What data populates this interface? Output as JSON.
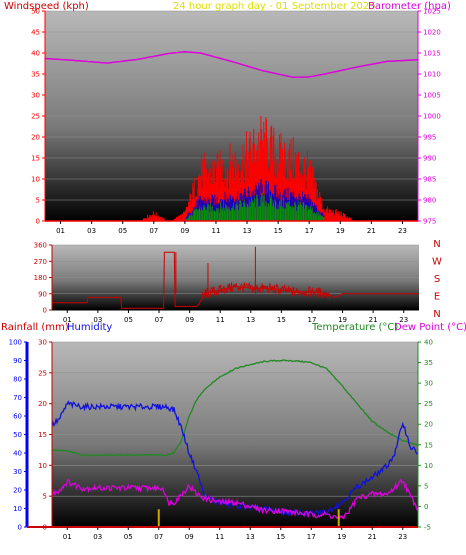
{
  "header": {
    "wind_label": "Windspeed (kph)",
    "date_label": "24 hour graph day - 01 September 2025",
    "baro_label": "Barometer (hpa)",
    "rain_label": "Rainfall (mm)",
    "humidity_label": "Humidity",
    "temp_label": "Temperature (°C)",
    "dew_label": "Dew Point (°C)"
  },
  "colors": {
    "wind": "#ff0000",
    "gust_blue": "#0000cc",
    "gust_green": "#009900",
    "baro": "#dd00dd",
    "temp": "#228822",
    "humidity": "#1111dd",
    "dewpoint": "#dd00dd",
    "rain_axis": "#0000ff",
    "rain_bar": "#ccaa00",
    "title_red": "#cc0000",
    "title_yellow": "#dddd00",
    "direction": "#cc0000"
  },
  "chart_data": [
    {
      "type": "area",
      "id": "wind_baro",
      "x_tick_labels": [
        "01",
        "03",
        "05",
        "07",
        "09",
        "11",
        "13",
        "15",
        "17",
        "19",
        "21",
        "23"
      ],
      "left_axis": {
        "label": "Windspeed (kph)",
        "ylim": [
          0,
          50
        ],
        "ticks": [
          0,
          5,
          10,
          15,
          20,
          25,
          30,
          35,
          40,
          45,
          50
        ]
      },
      "right_axis": {
        "label": "Barometer (hpa)",
        "ylim": [
          975,
          1025
        ],
        "ticks": [
          975,
          980,
          985,
          990,
          995,
          1000,
          1005,
          1010,
          1015,
          1020,
          1025
        ]
      },
      "series": [
        {
          "name": "Windspeed (kph)",
          "type": "bar",
          "x": [
            0,
            1,
            2,
            3,
            4,
            5,
            6,
            7,
            8,
            9,
            10,
            11,
            12,
            13,
            14,
            15,
            16,
            17,
            18,
            19,
            20,
            21,
            22,
            23,
            24
          ],
          "values": [
            0,
            0,
            0,
            0,
            0,
            0,
            0,
            2,
            0,
            2,
            13,
            13,
            15,
            17,
            21,
            17,
            16,
            13,
            3,
            2,
            0,
            0,
            0,
            0,
            0
          ]
        },
        {
          "name": "Barometer (hpa)",
          "type": "line",
          "x": [
            0,
            2,
            4,
            6,
            8,
            9,
            10,
            12,
            14,
            16,
            17,
            18,
            20,
            22,
            24
          ],
          "values": [
            1013.7,
            1013.2,
            1012.6,
            1013.5,
            1014.9,
            1015.3,
            1015.0,
            1013.0,
            1010.8,
            1009.2,
            1009.3,
            1010.0,
            1011.6,
            1013.0,
            1013.4
          ]
        }
      ]
    },
    {
      "type": "line",
      "id": "direction",
      "x_tick_labels": [
        "01",
        "03",
        "05",
        "07",
        "09",
        "11",
        "13",
        "15",
        "17",
        "19",
        "21",
        "23"
      ],
      "left_axis": {
        "ylim": [
          0,
          360
        ],
        "ticks": [
          0,
          90,
          180,
          270,
          360
        ]
      },
      "right_labels": [
        "N",
        "W",
        "S",
        "E",
        "N"
      ],
      "series": [
        {
          "name": "",
          "x": [
            0,
            2.3,
            2.35,
            4.5,
            4.55,
            7.3,
            7.35,
            8.0,
            8.05,
            9.5,
            10,
            11,
            12,
            13,
            14,
            15,
            16,
            17,
            18,
            18.5,
            19,
            20,
            21,
            22,
            23,
            24
          ],
          "values": [
            40,
            40,
            70,
            70,
            10,
            10,
            320,
            320,
            20,
            20,
            90,
            110,
            130,
            120,
            120,
            110,
            100,
            100,
            90,
            70,
            90,
            90,
            90,
            90,
            90,
            90
          ]
        }
      ]
    },
    {
      "type": "line",
      "id": "temp_hum_rain",
      "x_tick_labels": [
        "01",
        "03",
        "05",
        "07",
        "09",
        "11",
        "13",
        "15",
        "17",
        "19",
        "21",
        "23"
      ],
      "rain_axis": {
        "label": "Rainfall (mm)",
        "ylim": [
          0,
          100
        ],
        "ticks": [
          0,
          10,
          20,
          30,
          40,
          50,
          60,
          70,
          80,
          90,
          100
        ]
      },
      "humidity_axis": {
        "label": "Humidity",
        "ylim": [
          0,
          30
        ],
        "ticks": [
          0,
          5,
          10,
          15,
          20,
          25,
          30
        ]
      },
      "temp_axis": {
        "label": "Temperature (°C)",
        "ylim": [
          -5,
          40
        ],
        "ticks": [
          -5,
          0,
          5,
          10,
          15,
          20,
          25,
          30,
          35,
          40
        ]
      },
      "series": [
        {
          "name": "Humidity",
          "axis": "humidity",
          "x": [
            0,
            0.5,
            1,
            2,
            3,
            4,
            5,
            6,
            7,
            7.5,
            8,
            8.5,
            9,
            9.5,
            10,
            11,
            12,
            13,
            14,
            15,
            16,
            17,
            18,
            19,
            20,
            21,
            22,
            22.5,
            23,
            23.5,
            24
          ],
          "values": [
            16.5,
            17.5,
            20,
            19.5,
            19.5,
            19.5,
            19.5,
            19.5,
            19.5,
            19.5,
            19,
            16,
            12,
            9,
            5,
            4,
            3.5,
            3.2,
            2.8,
            2.5,
            2.3,
            2.2,
            2.5,
            4,
            6.5,
            8,
            10,
            12,
            17,
            13,
            12
          ]
        },
        {
          "name": "Temperature (°C)",
          "axis": "temp",
          "x": [
            0,
            1,
            2,
            3,
            4,
            5,
            6,
            7,
            7.5,
            8,
            8.5,
            9,
            9.5,
            10,
            11,
            12,
            13,
            14,
            15,
            16,
            17,
            18,
            19,
            20,
            21,
            22,
            23,
            24
          ],
          "values": [
            13.7,
            13.5,
            12.5,
            12.5,
            12.5,
            12.5,
            12.5,
            12.5,
            12.5,
            13,
            16,
            22,
            26,
            28.5,
            31.5,
            33.5,
            34.5,
            35.3,
            35.5,
            35.4,
            35,
            33.5,
            29.5,
            25,
            20.7,
            18,
            16,
            15
          ]
        },
        {
          "name": "Dew Point (°C)",
          "axis": "temp",
          "x": [
            0,
            0.5,
            1,
            2,
            3,
            4,
            5,
            6,
            7,
            7.3,
            7.6,
            8,
            8.5,
            9,
            9.5,
            10,
            11,
            12,
            13,
            14,
            15,
            16,
            17,
            18,
            19,
            19.5,
            20,
            21,
            22,
            23,
            23.5,
            24
          ],
          "values": [
            3,
            4,
            6,
            4.5,
            4.5,
            4.5,
            4.5,
            4.5,
            4.5,
            4.5,
            1,
            1,
            3,
            5,
            3,
            2,
            1,
            1,
            0,
            -1,
            -1,
            -1.5,
            -2,
            -2,
            -3,
            -1,
            2,
            3,
            3,
            6.5,
            2.5,
            -0.5
          ]
        },
        {
          "name": "Rainfall (mm)",
          "type": "bar",
          "axis": "rain",
          "x": [
            7,
            18.8
          ],
          "values": [
            0.8,
            0.8
          ]
        }
      ]
    }
  ]
}
